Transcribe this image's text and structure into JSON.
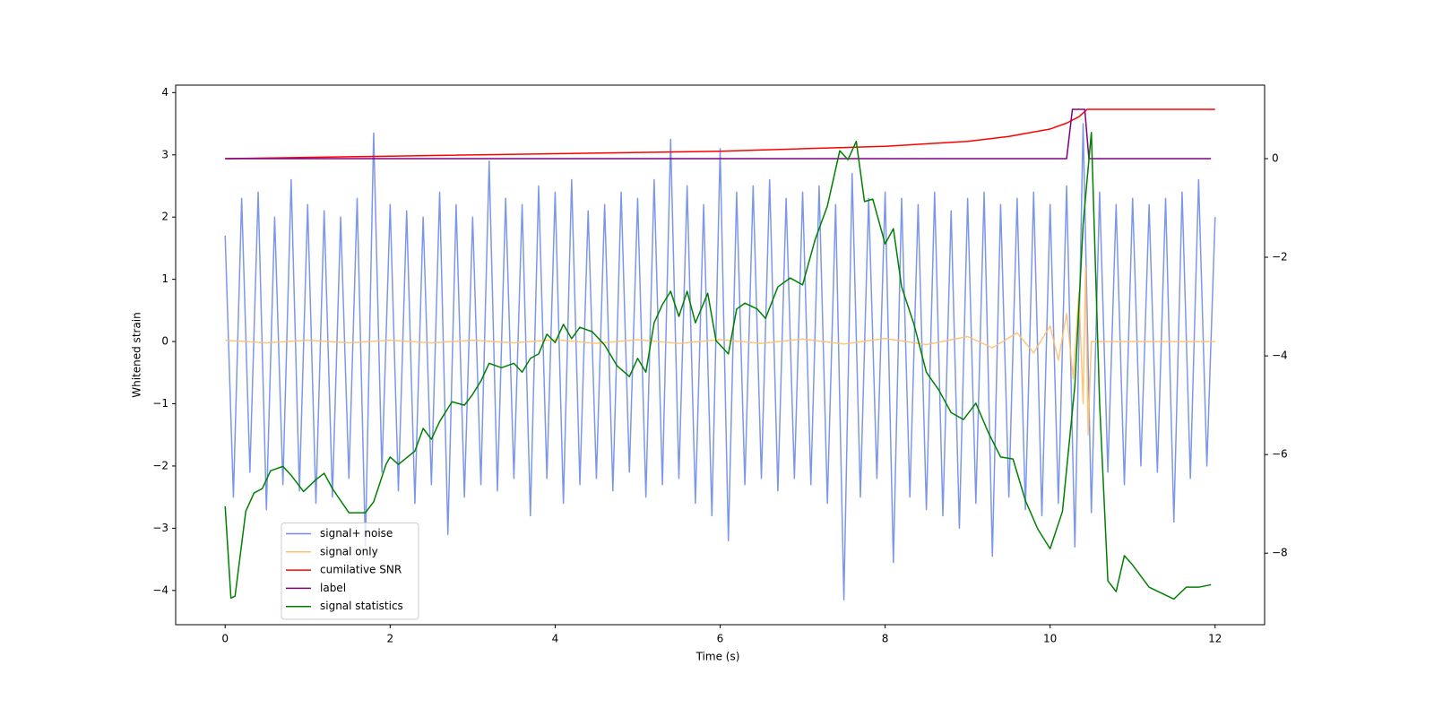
{
  "chart_data": {
    "type": "line",
    "xlabel": "Time (s)",
    "ylabel": "Whitened strain",
    "xlim": [
      -0.6,
      12.6
    ],
    "xticks": [
      0,
      2,
      4,
      6,
      8,
      10,
      12
    ],
    "ylim": [
      -4.55,
      4.12
    ],
    "yticks": [
      {
        "value": -4,
        "label": "−4"
      },
      {
        "value": -3,
        "label": "−3"
      },
      {
        "value": -2,
        "label": "−2"
      },
      {
        "value": -1,
        "label": "−1"
      },
      0,
      1,
      2,
      3,
      4
    ],
    "y2lim": [
      -9.45,
      1.49
    ],
    "y2ticks": [
      {
        "value": -8,
        "label": "−8"
      },
      {
        "value": -6,
        "label": "−6"
      },
      {
        "value": -4,
        "label": "−4"
      },
      {
        "value": -2,
        "label": "−2"
      },
      0
    ],
    "legend_loc": "lower left",
    "series": [
      {
        "name": "signal+ noise",
        "color": "#6f8ce6",
        "x": [
          0,
          0.1,
          0.2,
          0.3,
          0.4,
          0.5,
          0.6,
          0.7,
          0.8,
          0.9,
          1,
          1.1,
          1.2,
          1.3,
          1.4,
          1.5,
          1.6,
          1.7,
          1.8,
          1.9,
          2,
          2.1,
          2.2,
          2.3,
          2.4,
          2.5,
          2.6,
          2.7,
          2.8,
          2.9,
          3,
          3.1,
          3.2,
          3.3,
          3.4,
          3.5,
          3.6,
          3.7,
          3.8,
          3.9,
          4,
          4.1,
          4.2,
          4.3,
          4.4,
          4.5,
          4.6,
          4.7,
          4.8,
          4.9,
          5,
          5.1,
          5.2,
          5.3,
          5.4,
          5.5,
          5.6,
          5.7,
          5.8,
          5.9,
          6,
          6.1,
          6.2,
          6.3,
          6.4,
          6.5,
          6.6,
          6.7,
          6.8,
          6.9,
          7,
          7.1,
          7.2,
          7.3,
          7.4,
          7.5,
          7.6,
          7.7,
          7.8,
          7.9,
          8,
          8.1,
          8.2,
          8.3,
          8.4,
          8.5,
          8.6,
          8.7,
          8.8,
          8.9,
          9,
          9.1,
          9.2,
          9.3,
          9.4,
          9.5,
          9.6,
          9.7,
          9.8,
          9.9,
          10,
          10.1,
          10.2,
          10.3,
          10.4,
          10.5,
          10.6,
          10.7,
          10.8,
          10.9,
          11,
          11.1,
          11.2,
          11.3,
          11.4,
          11.5,
          11.6,
          11.7,
          11.8,
          11.9,
          12
        ],
        "values": [
          1.7,
          -2.5,
          2.3,
          -2.1,
          2.4,
          -2.7,
          2.0,
          -2.3,
          2.6,
          -2.4,
          2.2,
          -2.6,
          2.1,
          -2.5,
          2.0,
          -2.2,
          2.3,
          -3.3,
          3.35,
          -2.1,
          2.2,
          -2.4,
          2.1,
          -2.6,
          2.0,
          -2.3,
          2.4,
          -3.1,
          2.2,
          -2.5,
          2.0,
          -2.3,
          2.9,
          -2.4,
          2.3,
          -2.2,
          2.2,
          -2.8,
          2.5,
          -2.2,
          2.4,
          -2.6,
          2.6,
          -2.3,
          2.1,
          -2.2,
          2.2,
          -2.4,
          2.4,
          -2.1,
          2.3,
          -2.5,
          2.6,
          -2.3,
          3.25,
          -2.2,
          2.5,
          -2.6,
          2.2,
          -2.8,
          3.1,
          -3.2,
          2.4,
          -2.3,
          2.5,
          -2.2,
          2.6,
          -2.4,
          2.3,
          -2.2,
          2.4,
          -2.3,
          2.5,
          -2.6,
          2.2,
          -4.15,
          2.7,
          -2.5,
          2.3,
          -2.2,
          2.4,
          -3.55,
          2.3,
          -2.5,
          2.2,
          -2.7,
          2.4,
          -2.8,
          2.1,
          -3.0,
          2.3,
          -2.6,
          2.4,
          -3.45,
          2.2,
          -2.5,
          2.3,
          -2.7,
          2.4,
          -2.8,
          2.2,
          -2.6,
          2.5,
          -3.3,
          3.5,
          -2.75,
          2.4,
          -2.1,
          2.2,
          -2.3,
          2.3,
          -2.0,
          2.2,
          -2.1,
          2.3,
          -2.9,
          2.4,
          -2.2,
          2.6,
          -2.0,
          2.0
        ]
      },
      {
        "name": "signal only",
        "color": "#ffbf6b",
        "x": [
          0,
          0.5,
          1,
          1.5,
          2,
          2.5,
          3,
          3.5,
          4,
          4.5,
          5,
          5.5,
          6,
          6.5,
          7,
          7.5,
          8,
          8.5,
          9,
          9.3,
          9.6,
          9.8,
          10,
          10.1,
          10.2,
          10.28,
          10.35,
          10.4,
          10.43,
          10.46,
          10.5,
          12
        ],
        "values": [
          0.02,
          -0.02,
          0.02,
          -0.02,
          0.02,
          -0.02,
          0.02,
          -0.02,
          0.03,
          -0.03,
          0.03,
          -0.03,
          0.03,
          -0.03,
          0.04,
          -0.04,
          0.05,
          -0.05,
          0.08,
          -0.1,
          0.14,
          -0.18,
          0.25,
          -0.3,
          0.45,
          -0.6,
          0.8,
          -1.0,
          1.2,
          -1.5,
          0,
          0
        ]
      },
      {
        "name": "cumilative SNR",
        "color": "red",
        "axis": "y2",
        "x": [
          0,
          2,
          4,
          6,
          8,
          9,
          9.5,
          10,
          10.2,
          10.35,
          10.45,
          12
        ],
        "values": [
          0.0,
          0.05,
          0.1,
          0.15,
          0.25,
          0.35,
          0.45,
          0.6,
          0.72,
          0.85,
          1.0,
          1.0
        ]
      },
      {
        "name": "label",
        "color": "purple",
        "axis": "y2",
        "x": [
          0,
          10.2,
          10.27,
          10.42,
          10.47,
          11.95
        ],
        "values": [
          0,
          0,
          1,
          1,
          0,
          0
        ]
      },
      {
        "name": "signal statistics",
        "color": "green",
        "axis": "y2",
        "x": [
          0,
          0.07,
          0.12,
          0.25,
          0.35,
          0.45,
          0.55,
          0.7,
          0.8,
          0.95,
          1.1,
          1.2,
          1.3,
          1.5,
          1.7,
          1.8,
          1.95,
          2.0,
          2.1,
          2.3,
          2.4,
          2.5,
          2.6,
          2.75,
          2.9,
          3.0,
          3.1,
          3.2,
          3.35,
          3.5,
          3.6,
          3.7,
          3.8,
          3.9,
          4.0,
          4.1,
          4.2,
          4.3,
          4.45,
          4.6,
          4.75,
          4.9,
          5.0,
          5.1,
          5.2,
          5.3,
          5.4,
          5.5,
          5.6,
          5.7,
          5.85,
          5.95,
          6.1,
          6.2,
          6.3,
          6.45,
          6.55,
          6.7,
          6.85,
          7.0,
          7.15,
          7.3,
          7.45,
          7.55,
          7.65,
          7.75,
          7.85,
          8.0,
          8.1,
          8.2,
          8.35,
          8.5,
          8.65,
          8.8,
          8.95,
          9.1,
          9.25,
          9.4,
          9.55,
          9.7,
          9.85,
          10.0,
          10.15,
          10.3,
          10.4,
          10.5,
          10.6,
          10.7,
          10.8,
          10.9,
          11.0,
          11.2,
          11.5,
          11.65,
          11.8,
          11.95
        ],
        "values": [
          -7.05,
          -8.91,
          -8.87,
          -7.15,
          -6.78,
          -6.69,
          -6.33,
          -6.24,
          -6.42,
          -6.75,
          -6.51,
          -6.38,
          -6.69,
          -7.18,
          -7.18,
          -6.96,
          -6.2,
          -6.05,
          -6.2,
          -5.93,
          -5.47,
          -5.69,
          -5.33,
          -4.93,
          -5.0,
          -4.78,
          -4.51,
          -4.15,
          -4.24,
          -4.15,
          -4.33,
          -4.05,
          -3.96,
          -3.56,
          -3.73,
          -3.36,
          -3.65,
          -3.42,
          -3.51,
          -3.78,
          -4.2,
          -4.42,
          -4.05,
          -4.33,
          -3.33,
          -2.96,
          -2.69,
          -3.2,
          -2.69,
          -3.33,
          -2.73,
          -3.69,
          -3.96,
          -3.05,
          -2.93,
          -3.05,
          -3.24,
          -2.6,
          -2.42,
          -2.56,
          -1.65,
          -0.96,
          0.16,
          -0.02,
          0.35,
          -0.87,
          -0.82,
          -1.73,
          -1.42,
          -2.6,
          -3.36,
          -4.33,
          -4.69,
          -5.15,
          -5.29,
          -4.96,
          -5.55,
          -6.05,
          -6.09,
          -6.93,
          -7.51,
          -7.91,
          -7.15,
          -4.6,
          -1.33,
          0.53,
          -4.96,
          -8.56,
          -8.78,
          -8.05,
          -8.24,
          -8.69,
          -8.93,
          -8.69,
          -8.69,
          -8.64
        ]
      }
    ]
  }
}
